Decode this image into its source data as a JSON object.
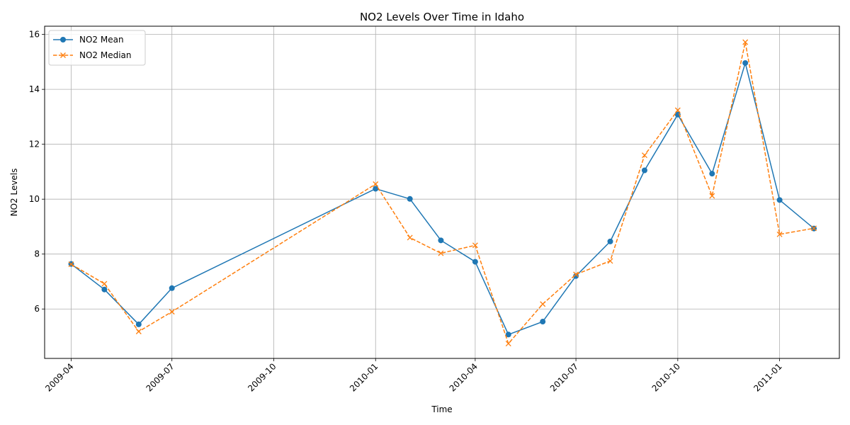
{
  "chart_data": {
    "type": "line",
    "title": "NO2 Levels Over Time in Idaho",
    "xlabel": "Time",
    "ylabel": "NO2 Levels",
    "x": [
      "2009-04-01",
      "2009-05-01",
      "2009-06-01",
      "2009-07-01",
      "2010-01-01",
      "2010-02-01",
      "2010-03-01",
      "2010-04-01",
      "2010-05-01",
      "2010-06-01",
      "2010-07-01",
      "2010-08-01",
      "2010-09-01",
      "2010-10-01",
      "2010-11-01",
      "2010-12-01",
      "2011-01-01",
      "2011-02-01"
    ],
    "series": [
      {
        "name": "NO2 Mean",
        "color": "#1f77b4",
        "marker": "circle",
        "linestyle": "solid",
        "values": [
          7.64,
          6.71,
          5.44,
          6.76,
          10.38,
          10.01,
          8.5,
          7.72,
          5.07,
          5.54,
          7.2,
          8.46,
          11.05,
          13.08,
          10.93,
          14.96,
          9.97,
          8.93
        ]
      },
      {
        "name": "NO2 Median",
        "color": "#ff7f0e",
        "marker": "x",
        "linestyle": "dashed",
        "values": [
          7.63,
          6.92,
          5.18,
          5.9,
          10.55,
          8.6,
          8.03,
          8.32,
          4.74,
          6.18,
          7.26,
          7.75,
          11.6,
          13.24,
          10.12,
          15.72,
          8.72,
          8.94
        ]
      }
    ],
    "x_ticks": [
      "2009-04",
      "2009-07",
      "2009-10",
      "2010-01",
      "2010-04",
      "2010-07",
      "2010-10",
      "2011-01"
    ],
    "y_ticks": [
      6,
      8,
      10,
      12,
      14,
      16
    ],
    "ylim": [
      4.2,
      16.3
    ],
    "xlim": [
      "2009-03-08",
      "2011-02-24"
    ],
    "grid": true,
    "legend": "upper-left"
  }
}
